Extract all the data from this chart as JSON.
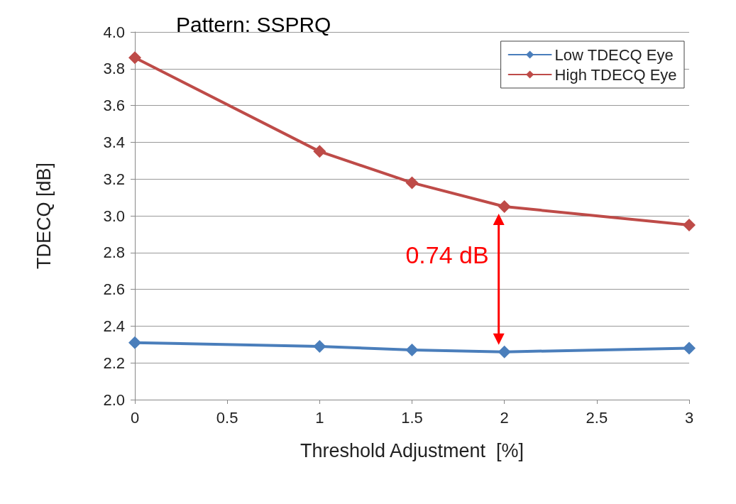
{
  "chart_data": {
    "type": "line",
    "title": "Pattern: SSPRQ",
    "xlabel": "Threshold Adjustment  [%]",
    "ylabel": "TDECQ [dB]",
    "series": [
      {
        "name": "Low TDECQ Eye",
        "color": "#4a7ebb",
        "x": [
          0,
          1,
          1.5,
          2,
          3
        ],
        "values": [
          2.31,
          2.29,
          2.27,
          2.26,
          2.28
        ]
      },
      {
        "name": "High TDECQ Eye",
        "color": "#be4b48",
        "x": [
          0,
          1,
          1.5,
          2,
          3
        ],
        "values": [
          3.86,
          3.35,
          3.18,
          3.05,
          2.95
        ]
      }
    ],
    "xlim": [
      0,
      3
    ],
    "xticks": [
      0,
      0.5,
      1,
      1.5,
      2,
      2.5,
      3
    ],
    "ylim": [
      2,
      4
    ],
    "yticks": [
      {
        "value": 2,
        "label": "2.0"
      },
      2.2,
      2.4,
      2.6,
      2.8,
      {
        "value": 3,
        "label": "3.0"
      },
      3.2,
      3.4,
      3.6,
      3.8,
      {
        "value": 4,
        "label": "4.0"
      }
    ],
    "annotations": [
      {
        "text": "0.74 dB",
        "x": 2,
        "y": 3.05
      }
    ],
    "grid": "y",
    "legend": "top right",
    "marker": "diamond",
    "line_style": "solid"
  }
}
